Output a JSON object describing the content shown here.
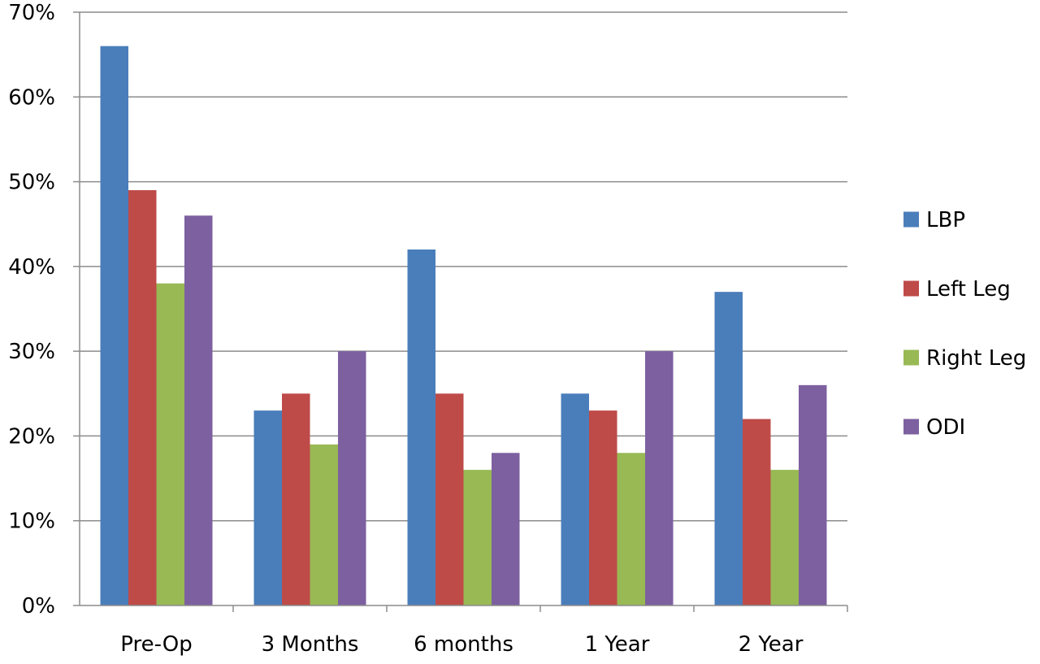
{
  "chart_data": {
    "type": "bar",
    "title": "",
    "xlabel": "",
    "ylabel": "",
    "categories": [
      "Pre-Op",
      "3 Months",
      "6 months",
      "1 Year",
      "2 Year"
    ],
    "series": [
      {
        "name": "LBP",
        "color": "#4a7ebb",
        "values": [
          66,
          23,
          42,
          25,
          37
        ]
      },
      {
        "name": "Left Leg",
        "color": "#be4b48",
        "values": [
          49,
          25,
          25,
          23,
          22
        ]
      },
      {
        "name": "Right Leg",
        "color": "#98b954",
        "values": [
          38,
          19,
          16,
          18,
          16
        ]
      },
      {
        "name": "ODI",
        "color": "#7d60a0",
        "values": [
          46,
          30,
          18,
          30,
          26
        ]
      }
    ],
    "ylim": [
      0,
      70
    ],
    "yticks": [
      0,
      10,
      20,
      30,
      40,
      50,
      60,
      70
    ],
    "ytick_labels": [
      "0%",
      "10%",
      "20%",
      "30%",
      "40%",
      "50%",
      "60%",
      "70%"
    ],
    "y_unit": "percent",
    "grid": true,
    "legend_position": "right"
  }
}
